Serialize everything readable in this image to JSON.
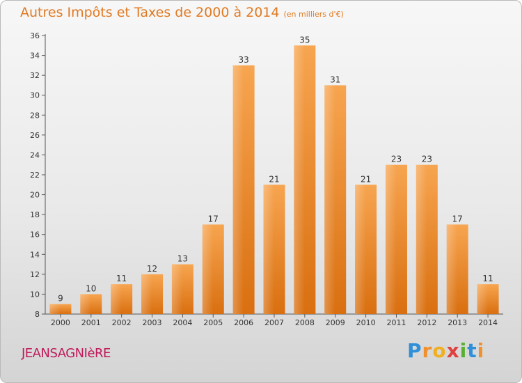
{
  "chart_data": {
    "type": "bar",
    "title": "Autres Impôts et Taxes de 2000 à 2014",
    "unit": "(en milliers d'€)",
    "categories": [
      "2000",
      "2001",
      "2002",
      "2003",
      "2004",
      "2005",
      "2006",
      "2007",
      "2008",
      "2009",
      "2010",
      "2011",
      "2012",
      "2013",
      "2014"
    ],
    "values": [
      9,
      10,
      11,
      12,
      13,
      17,
      33,
      21,
      35,
      31,
      21,
      23,
      23,
      17,
      11
    ],
    "ylim": [
      8,
      36
    ],
    "yticks": [
      8,
      10,
      12,
      14,
      16,
      18,
      20,
      22,
      24,
      26,
      28,
      30,
      32,
      34,
      36
    ],
    "grid": false,
    "bar_color": "#f0902e"
  },
  "commune": "JEANSAGNIèRE",
  "logo": {
    "letters": [
      "P",
      "r",
      "o",
      "x",
      "i",
      "t",
      "i"
    ],
    "colors": [
      "#2f8fd8",
      "#f0902e",
      "#f0b020",
      "#e04040",
      "#58b030",
      "#2f8fd8",
      "#f0902e"
    ]
  }
}
